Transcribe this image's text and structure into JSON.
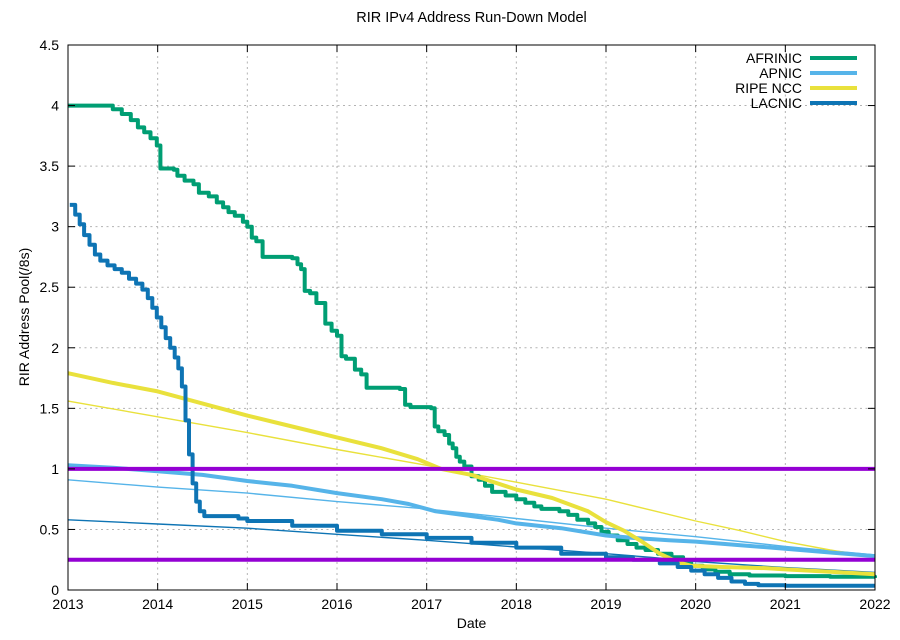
{
  "chart_data": {
    "type": "line",
    "title": "RIR IPv4 Address Run-Down Model",
    "xlabel": "Date",
    "ylabel": "RIR Address Pool(/8s)",
    "xlim": [
      2013,
      2022
    ],
    "ylim": [
      0,
      4.5
    ],
    "x_ticks": [
      "2013",
      "2014",
      "2015",
      "2016",
      "2017",
      "2018",
      "2019",
      "2020",
      "2021",
      "2022"
    ],
    "y_ticks": [
      "0",
      "0.5",
      "1",
      "1.5",
      "2",
      "2.5",
      "3",
      "3.5",
      "4",
      "4.5"
    ],
    "grid": true,
    "legend_position": "top-right-inside",
    "background_color": "#ffffff",
    "axis_color": "#000000",
    "grid_color": "#b3b3b3",
    "threshold_color": "#9400D3",
    "thresholds": [
      1.0,
      0.25
    ],
    "legend": {
      "entries": [
        {
          "label": "AFRINIC",
          "color": "#009E73"
        },
        {
          "label": "APNIC",
          "color": "#56B4E9"
        },
        {
          "label": "RIPE NCC",
          "color": "#E9E13C"
        },
        {
          "label": "LACNIC",
          "color": "#0E74B4"
        }
      ]
    },
    "series": [
      {
        "name": "APNIC model",
        "kind": "model-projection",
        "color": "#56B4E9",
        "thick": false,
        "step": false,
        "points": [
          [
            2013,
            0.91
          ],
          [
            2014,
            0.85
          ],
          [
            2015,
            0.8
          ],
          [
            2016,
            0.73
          ],
          [
            2017,
            0.67
          ],
          [
            2018,
            0.59
          ],
          [
            2019,
            0.51
          ],
          [
            2020,
            0.44
          ],
          [
            2021,
            0.36
          ],
          [
            2022,
            0.29
          ]
        ]
      },
      {
        "name": "RIPE NCC model",
        "kind": "model-projection",
        "color": "#E9E13C",
        "thick": false,
        "step": false,
        "points": [
          [
            2013,
            1.56
          ],
          [
            2014,
            1.43
          ],
          [
            2015,
            1.3
          ],
          [
            2016,
            1.16
          ],
          [
            2017,
            1.03
          ],
          [
            2018,
            0.89
          ],
          [
            2019,
            0.75
          ],
          [
            2019.5,
            0.66
          ],
          [
            2020,
            0.57
          ],
          [
            2020.5,
            0.49
          ],
          [
            2021,
            0.4
          ],
          [
            2021.5,
            0.33
          ],
          [
            2022,
            0.27
          ]
        ]
      },
      {
        "name": "LACNIC model",
        "kind": "model-projection",
        "color": "#0E74B4",
        "thick": false,
        "step": false,
        "points": [
          [
            2013,
            0.58
          ],
          [
            2014,
            0.545
          ],
          [
            2015,
            0.51
          ],
          [
            2016,
            0.46
          ],
          [
            2017,
            0.41
          ],
          [
            2018,
            0.355
          ],
          [
            2019,
            0.3
          ],
          [
            2019.5,
            0.27
          ],
          [
            2020,
            0.235
          ],
          [
            2020.5,
            0.21
          ],
          [
            2021,
            0.185
          ],
          [
            2021.5,
            0.165
          ],
          [
            2022,
            0.145
          ]
        ]
      },
      {
        "name": "AFRINIC",
        "kind": "actual",
        "color": "#009E73",
        "thick": true,
        "step": true,
        "points": [
          [
            2013,
            4.0
          ],
          [
            2013.42,
            4.0
          ],
          [
            2013.5,
            3.97
          ],
          [
            2013.6,
            3.93
          ],
          [
            2013.7,
            3.88
          ],
          [
            2013.78,
            3.82
          ],
          [
            2013.85,
            3.78
          ],
          [
            2013.92,
            3.73
          ],
          [
            2013.99,
            3.67
          ],
          [
            2014.03,
            3.48
          ],
          [
            2014.18,
            3.47
          ],
          [
            2014.22,
            3.42
          ],
          [
            2014.3,
            3.38
          ],
          [
            2014.4,
            3.35
          ],
          [
            2014.46,
            3.28
          ],
          [
            2014.57,
            3.25
          ],
          [
            2014.66,
            3.2
          ],
          [
            2014.73,
            3.16
          ],
          [
            2014.79,
            3.12
          ],
          [
            2014.86,
            3.09
          ],
          [
            2014.95,
            3.04
          ],
          [
            2015.0,
            3.0
          ],
          [
            2015.05,
            2.91
          ],
          [
            2015.1,
            2.88
          ],
          [
            2015.17,
            2.75
          ],
          [
            2015.5,
            2.74
          ],
          [
            2015.56,
            2.69
          ],
          [
            2015.6,
            2.65
          ],
          [
            2015.64,
            2.47
          ],
          [
            2015.7,
            2.45
          ],
          [
            2015.77,
            2.37
          ],
          [
            2015.87,
            2.2
          ],
          [
            2015.94,
            2.14
          ],
          [
            2016.0,
            2.1
          ],
          [
            2016.05,
            1.93
          ],
          [
            2016.1,
            1.91
          ],
          [
            2016.2,
            1.82
          ],
          [
            2016.27,
            1.78
          ],
          [
            2016.33,
            1.67
          ],
          [
            2016.7,
            1.66
          ],
          [
            2016.76,
            1.53
          ],
          [
            2016.82,
            1.51
          ],
          [
            2017.05,
            1.5
          ],
          [
            2017.09,
            1.35
          ],
          [
            2017.13,
            1.31
          ],
          [
            2017.2,
            1.28
          ],
          [
            2017.25,
            1.21
          ],
          [
            2017.29,
            1.17
          ],
          [
            2017.33,
            1.1
          ],
          [
            2017.37,
            1.06
          ],
          [
            2017.42,
            1.02
          ],
          [
            2017.5,
            0.94
          ],
          [
            2017.58,
            0.91
          ],
          [
            2017.65,
            0.86
          ],
          [
            2017.73,
            0.81
          ],
          [
            2017.88,
            0.78
          ],
          [
            2018.0,
            0.75
          ],
          [
            2018.1,
            0.72
          ],
          [
            2018.2,
            0.69
          ],
          [
            2018.28,
            0.67
          ],
          [
            2018.48,
            0.65
          ],
          [
            2018.58,
            0.62
          ],
          [
            2018.68,
            0.58
          ],
          [
            2018.8,
            0.55
          ],
          [
            2018.88,
            0.52
          ],
          [
            2018.95,
            0.48
          ],
          [
            2019.03,
            0.45
          ],
          [
            2019.13,
            0.41
          ],
          [
            2019.24,
            0.38
          ],
          [
            2019.34,
            0.35
          ],
          [
            2019.44,
            0.33
          ],
          [
            2019.58,
            0.3
          ],
          [
            2019.73,
            0.27
          ],
          [
            2019.86,
            0.23
          ],
          [
            2019.95,
            0.2
          ],
          [
            2020.08,
            0.17
          ],
          [
            2020.22,
            0.15
          ],
          [
            2020.38,
            0.13
          ],
          [
            2020.6,
            0.12
          ],
          [
            2021.0,
            0.115
          ],
          [
            2021.5,
            0.11
          ],
          [
            2022,
            0.1
          ]
        ]
      },
      {
        "name": "APNIC",
        "kind": "actual",
        "color": "#56B4E9",
        "thick": true,
        "step": false,
        "points": [
          [
            2013,
            1.03
          ],
          [
            2013.5,
            1.01
          ],
          [
            2014,
            0.98
          ],
          [
            2014.5,
            0.95
          ],
          [
            2015,
            0.9
          ],
          [
            2015.5,
            0.86
          ],
          [
            2016,
            0.8
          ],
          [
            2016.5,
            0.75
          ],
          [
            2016.8,
            0.71
          ],
          [
            2017.1,
            0.65
          ],
          [
            2017.4,
            0.62
          ],
          [
            2017.8,
            0.58
          ],
          [
            2018,
            0.55
          ],
          [
            2018.5,
            0.51
          ],
          [
            2019,
            0.45
          ],
          [
            2019.3,
            0.43
          ],
          [
            2019.7,
            0.41
          ],
          [
            2020,
            0.4
          ],
          [
            2020.5,
            0.37
          ],
          [
            2021,
            0.34
          ],
          [
            2021.5,
            0.31
          ],
          [
            2022,
            0.28
          ]
        ]
      },
      {
        "name": "RIPE NCC",
        "kind": "actual",
        "color": "#E9E13C",
        "thick": true,
        "step": false,
        "points": [
          [
            2013,
            1.79
          ],
          [
            2013.5,
            1.71
          ],
          [
            2014,
            1.64
          ],
          [
            2014.6,
            1.52
          ],
          [
            2015,
            1.44
          ],
          [
            2015.5,
            1.35
          ],
          [
            2016,
            1.26
          ],
          [
            2016.5,
            1.17
          ],
          [
            2016.9,
            1.08
          ],
          [
            2017.16,
            1.0
          ],
          [
            2017.5,
            0.95
          ],
          [
            2018,
            0.83
          ],
          [
            2018.4,
            0.76
          ],
          [
            2018.8,
            0.65
          ],
          [
            2019,
            0.56
          ],
          [
            2019.2,
            0.49
          ],
          [
            2019.4,
            0.4
          ],
          [
            2019.6,
            0.3
          ],
          [
            2019.8,
            0.23
          ],
          [
            2019.95,
            0.2
          ],
          [
            2020.3,
            0.19
          ],
          [
            2020.8,
            0.18
          ],
          [
            2021,
            0.17
          ],
          [
            2021.5,
            0.15
          ],
          [
            2022,
            0.13
          ]
        ]
      },
      {
        "name": "LACNIC",
        "kind": "actual",
        "color": "#0E74B4",
        "thick": true,
        "step": true,
        "points": [
          [
            2013.02,
            3.18
          ],
          [
            2013.08,
            3.1
          ],
          [
            2013.13,
            3.02
          ],
          [
            2013.18,
            2.93
          ],
          [
            2013.24,
            2.85
          ],
          [
            2013.3,
            2.77
          ],
          [
            2013.36,
            2.72
          ],
          [
            2013.44,
            2.68
          ],
          [
            2013.52,
            2.65
          ],
          [
            2013.6,
            2.62
          ],
          [
            2013.68,
            2.57
          ],
          [
            2013.76,
            2.53
          ],
          [
            2013.83,
            2.48
          ],
          [
            2013.89,
            2.41
          ],
          [
            2013.94,
            2.33
          ],
          [
            2013.99,
            2.25
          ],
          [
            2014.04,
            2.17
          ],
          [
            2014.09,
            2.08
          ],
          [
            2014.14,
            2.0
          ],
          [
            2014.19,
            1.92
          ],
          [
            2014.23,
            1.83
          ],
          [
            2014.27,
            1.68
          ],
          [
            2014.31,
            1.4
          ],
          [
            2014.35,
            1.12
          ],
          [
            2014.39,
            0.88
          ],
          [
            2014.43,
            0.73
          ],
          [
            2014.47,
            0.65
          ],
          [
            2014.52,
            0.61
          ],
          [
            2014.9,
            0.59
          ],
          [
            2015,
            0.57
          ],
          [
            2015.5,
            0.53
          ],
          [
            2016,
            0.49
          ],
          [
            2016.5,
            0.46
          ],
          [
            2017,
            0.43
          ],
          [
            2017.5,
            0.39
          ],
          [
            2018,
            0.35
          ],
          [
            2018.5,
            0.3
          ],
          [
            2019,
            0.27
          ],
          [
            2019.3,
            0.25
          ],
          [
            2019.6,
            0.22
          ],
          [
            2019.8,
            0.19
          ],
          [
            2019.95,
            0.16
          ],
          [
            2020.1,
            0.13
          ],
          [
            2020.25,
            0.1
          ],
          [
            2020.4,
            0.07
          ],
          [
            2020.55,
            0.05
          ],
          [
            2020.7,
            0.04
          ],
          [
            2021,
            0.035
          ],
          [
            2022,
            0.035
          ]
        ]
      }
    ]
  }
}
